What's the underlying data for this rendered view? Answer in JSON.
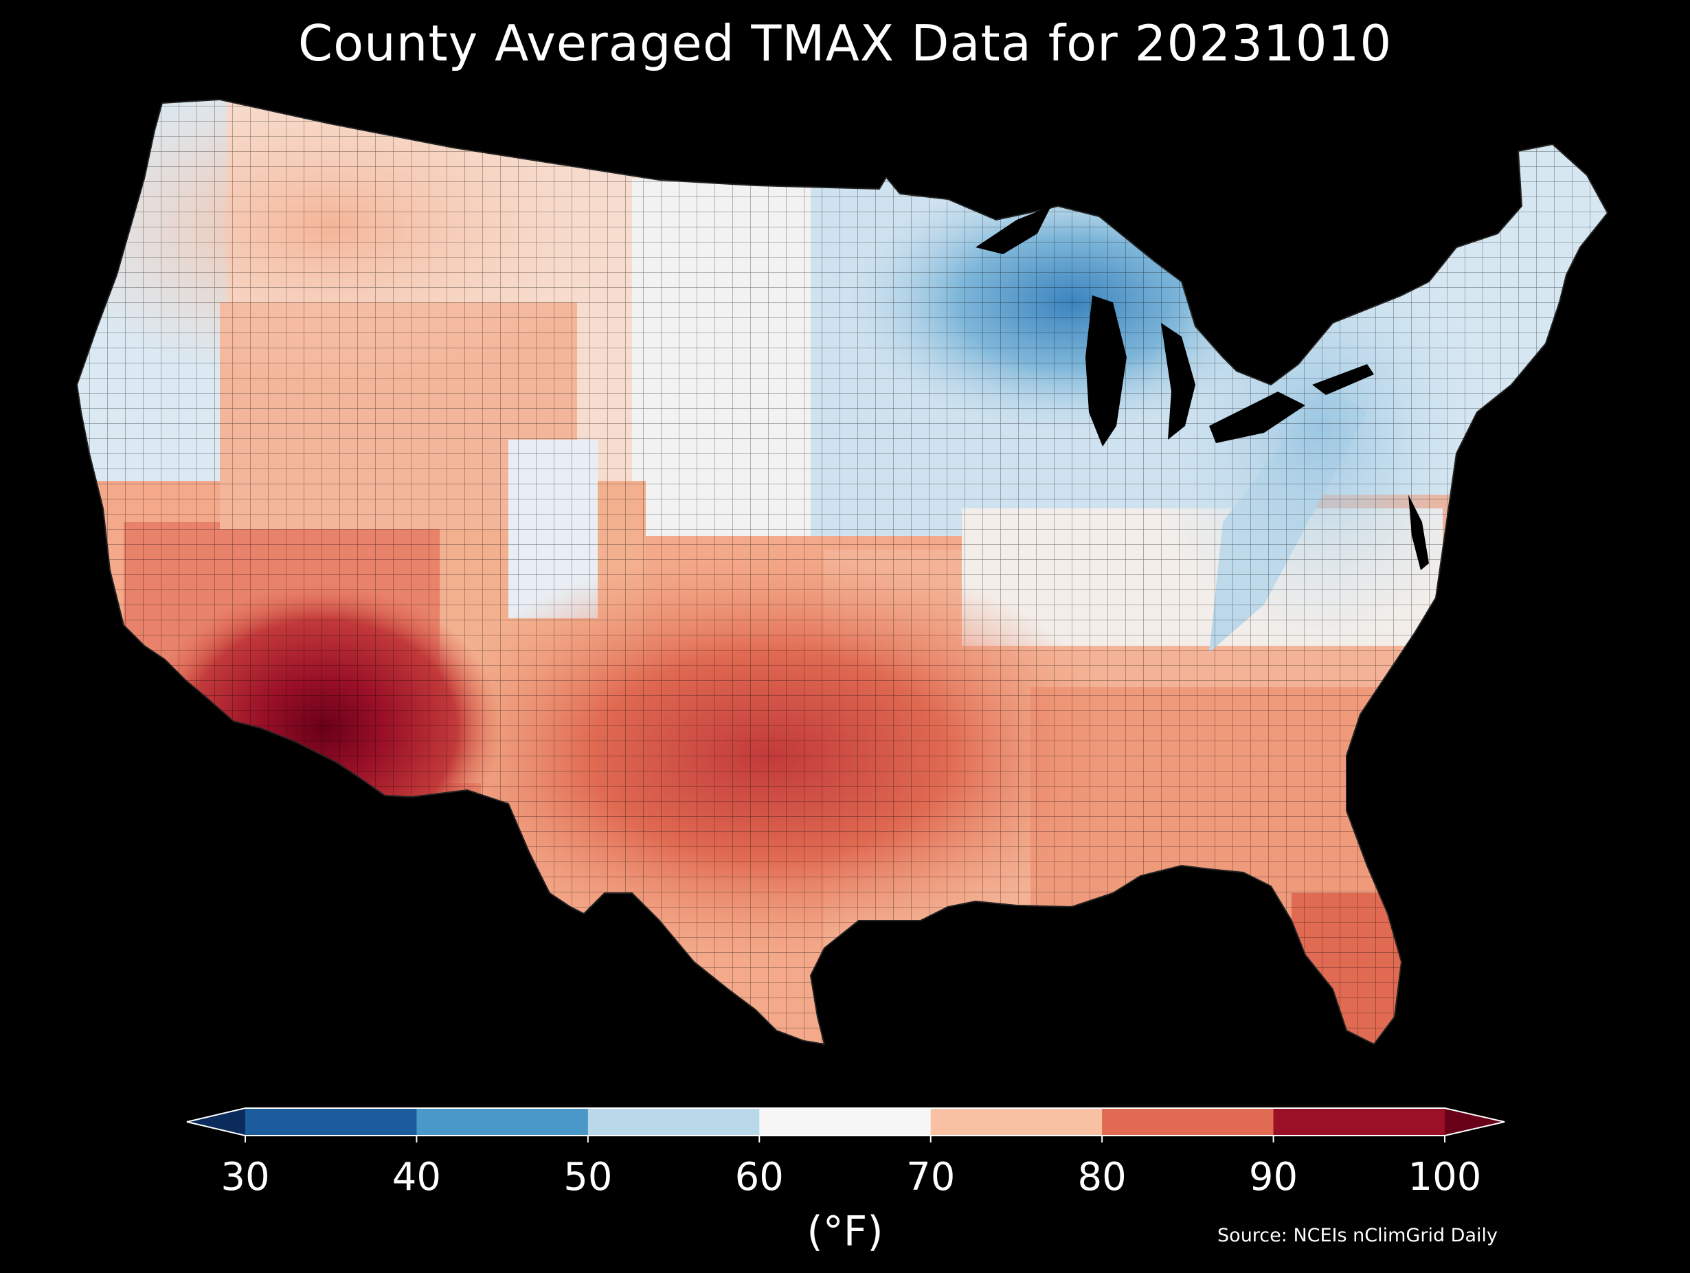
{
  "title": "County Averaged TMAX Data for 20231010",
  "colorbar": {
    "unit_label": "(°F)",
    "ticks": [
      "30",
      "40",
      "50",
      "60",
      "70",
      "80",
      "90",
      "100"
    ],
    "bins": [
      {
        "range": "<30",
        "color": "#0b2b5c"
      },
      {
        "range": "30-40",
        "color": "#1c5c9c"
      },
      {
        "range": "40-50",
        "color": "#4a98c8"
      },
      {
        "range": "50-60",
        "color": "#b9d8ea"
      },
      {
        "range": "60-70",
        "color": "#f6f6f6"
      },
      {
        "range": "70-80",
        "color": "#f8c1a3"
      },
      {
        "range": "80-90",
        "color": "#e06a52"
      },
      {
        "range": "90-100",
        "color": "#9a1027"
      },
      {
        "range": ">100",
        "color": "#680018"
      }
    ]
  },
  "source": "Source: NCEIs nClimGrid Daily",
  "map": {
    "region": "Contiguous United States",
    "warmest_area": "Southwest desert / Arizona",
    "coolest_area": "Upper Michigan / Great Lakes"
  }
}
